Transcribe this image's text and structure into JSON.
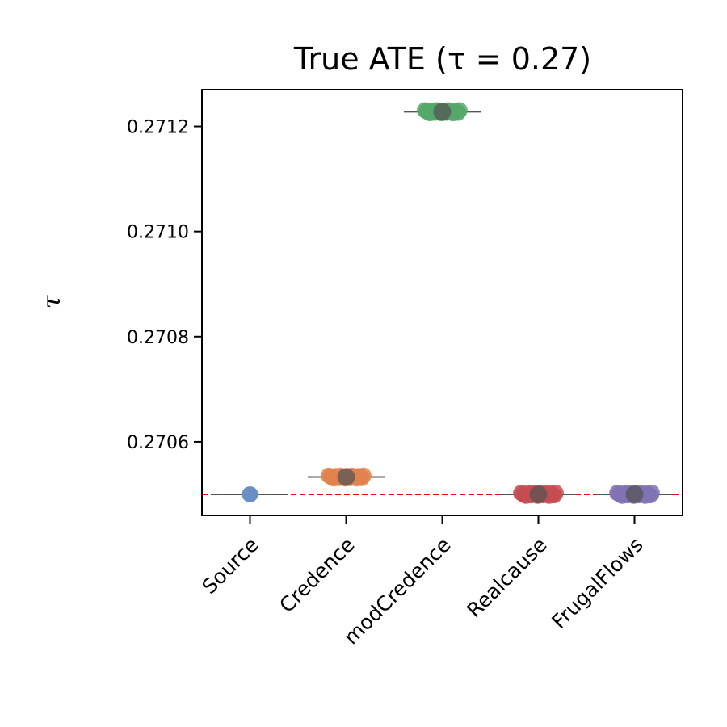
{
  "chart_data": {
    "type": "scatter",
    "title": "True ATE (τ = 0.27)",
    "xlabel": "",
    "ylabel": "τ",
    "categories": [
      "Source",
      "Credence",
      "modCredence",
      "Realcause",
      "FrugalFlows"
    ],
    "ylim": [
      0.27046,
      0.27127
    ],
    "yticks": [
      "0.2706",
      "0.2708",
      "0.2710",
      "0.2712"
    ],
    "reference_line": {
      "value": 0.2705,
      "color": "#ff0000",
      "style": "dashed"
    },
    "grid": false,
    "series": [
      {
        "category": "Source",
        "values": [
          0.2705
        ],
        "spread": 0.0,
        "color": "#6a8fc4"
      },
      {
        "category": "Credence",
        "values": [
          0.270533
        ],
        "spread": 0.5,
        "color": "#e1824f"
      },
      {
        "category": "modCredence",
        "values": [
          0.271228
        ],
        "spread": 0.5,
        "color": "#55a868"
      },
      {
        "category": "Realcause",
        "values": [
          0.2705
        ],
        "spread": 0.5,
        "color": "#c44e52"
      },
      {
        "category": "FrugalFlows",
        "values": [
          0.2705
        ],
        "spread": 0.5,
        "color": "#8172b3"
      }
    ]
  }
}
